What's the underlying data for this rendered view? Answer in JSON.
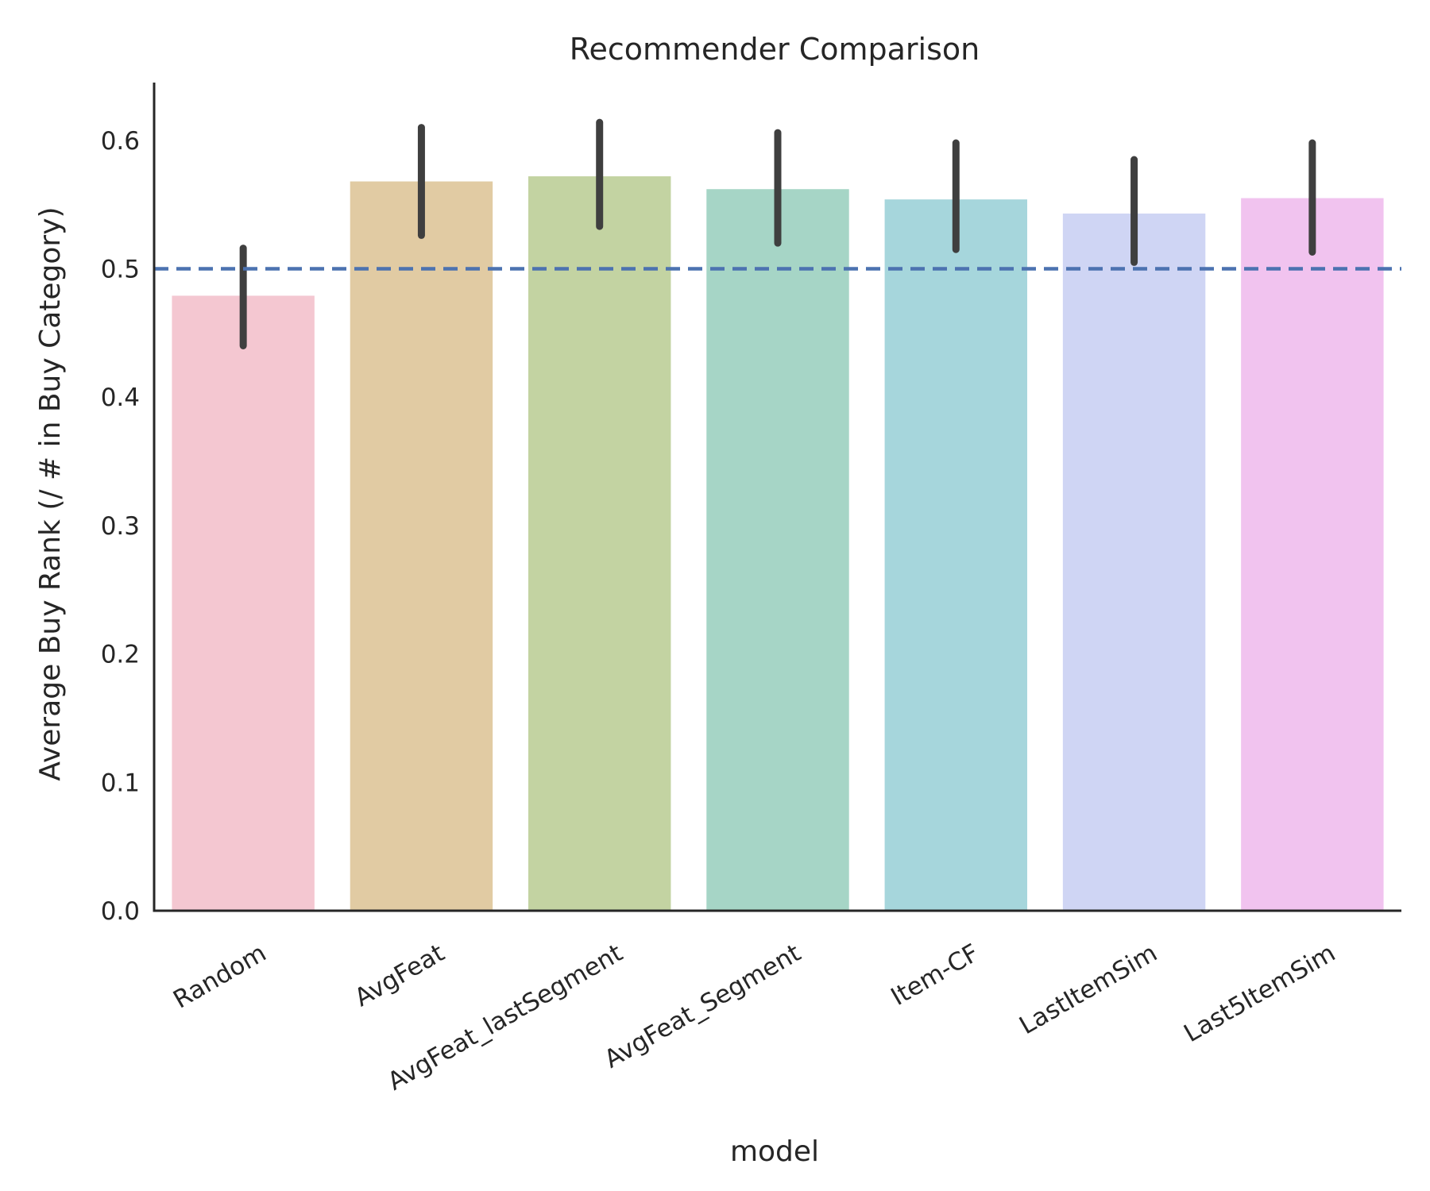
{
  "chart_data": {
    "type": "bar",
    "title": "Recommender Comparison",
    "xlabel": "model",
    "ylabel": "Average Buy Rank (/ # in Buy Category)",
    "ylim": [
      0,
      0.645
    ],
    "yticks": [
      "0.0",
      "0.1",
      "0.2",
      "0.3",
      "0.4",
      "0.5",
      "0.6"
    ],
    "ytick_values": [
      0,
      0.1,
      0.2,
      0.3,
      0.4,
      0.5,
      0.6
    ],
    "categories": [
      "Random",
      "AvgFeat",
      "AvgFeat_lastSegment",
      "AvgFeat_Segment",
      "Item-CF",
      "LastItemSim",
      "Last5ItemSim"
    ],
    "values": [
      0.479,
      0.568,
      0.572,
      0.562,
      0.554,
      0.543,
      0.555
    ],
    "error_low": [
      0.44,
      0.526,
      0.533,
      0.52,
      0.515,
      0.505,
      0.513
    ],
    "error_high": [
      0.516,
      0.61,
      0.614,
      0.606,
      0.598,
      0.585,
      0.598
    ],
    "bar_colors": [
      "#f4c7d1",
      "#e1cba3",
      "#c3d3a2",
      "#a6d5c6",
      "#a6d6dc",
      "#cfd5f4",
      "#f1c3ef"
    ],
    "error_bar_color": "#3f3f3f",
    "reference_line": {
      "y": 0.5,
      "style": "dashed",
      "color": "#4c72b0"
    },
    "grid": false,
    "spines": [
      "left",
      "bottom"
    ]
  }
}
